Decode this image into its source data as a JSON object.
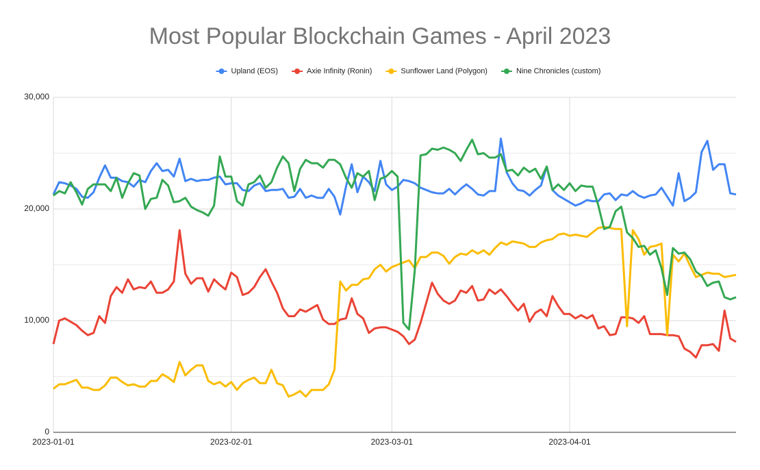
{
  "chart_data": {
    "type": "line",
    "title": "Most Popular Blockchain Games - April 2023",
    "x": [
      "2023-01-01",
      "2023-01-02",
      "2023-01-03",
      "2023-01-04",
      "2023-01-05",
      "2023-01-06",
      "2023-01-07",
      "2023-01-08",
      "2023-01-09",
      "2023-01-10",
      "2023-01-11",
      "2023-01-12",
      "2023-01-13",
      "2023-01-14",
      "2023-01-15",
      "2023-01-16",
      "2023-01-17",
      "2023-01-18",
      "2023-01-19",
      "2023-01-20",
      "2023-01-21",
      "2023-01-22",
      "2023-01-23",
      "2023-01-24",
      "2023-01-25",
      "2023-01-26",
      "2023-01-27",
      "2023-01-28",
      "2023-01-29",
      "2023-01-30",
      "2023-01-31",
      "2023-02-01",
      "2023-02-02",
      "2023-02-03",
      "2023-02-04",
      "2023-02-05",
      "2023-02-06",
      "2023-02-07",
      "2023-02-08",
      "2023-02-09",
      "2023-02-10",
      "2023-02-11",
      "2023-02-12",
      "2023-02-13",
      "2023-02-14",
      "2023-02-15",
      "2023-02-16",
      "2023-02-17",
      "2023-02-18",
      "2023-02-19",
      "2023-02-20",
      "2023-02-21",
      "2023-02-22",
      "2023-02-23",
      "2023-02-24",
      "2023-02-25",
      "2023-02-26",
      "2023-02-27",
      "2023-02-28",
      "2023-03-01",
      "2023-03-02",
      "2023-03-03",
      "2023-03-04",
      "2023-03-05",
      "2023-03-06",
      "2023-03-07",
      "2023-03-08",
      "2023-03-09",
      "2023-03-10",
      "2023-03-11",
      "2023-03-12",
      "2023-03-13",
      "2023-03-14",
      "2023-03-15",
      "2023-03-16",
      "2023-03-17",
      "2023-03-18",
      "2023-03-19",
      "2023-03-20",
      "2023-03-21",
      "2023-03-22",
      "2023-03-23",
      "2023-03-24",
      "2023-03-25",
      "2023-03-26",
      "2023-03-27",
      "2023-03-28",
      "2023-03-29",
      "2023-03-30",
      "2023-03-31",
      "2023-04-01",
      "2023-04-02",
      "2023-04-03",
      "2023-04-04",
      "2023-04-05",
      "2023-04-06",
      "2023-04-07",
      "2023-04-08",
      "2023-04-09",
      "2023-04-10",
      "2023-04-11",
      "2023-04-12",
      "2023-04-13",
      "2023-04-14",
      "2023-04-15",
      "2023-04-16",
      "2023-04-17",
      "2023-04-18",
      "2023-04-19",
      "2023-04-20",
      "2023-04-21",
      "2023-04-22",
      "2023-04-23",
      "2023-04-24",
      "2023-04-25",
      "2023-04-26",
      "2023-04-27",
      "2023-04-28",
      "2023-04-29",
      "2023-04-30"
    ],
    "series": [
      {
        "name": "Upland (EOS)",
        "color": "#4285f4",
        "values": [
          21300,
          22400,
          22300,
          22100,
          21800,
          21100,
          21000,
          21500,
          22800,
          23900,
          22800,
          22800,
          22500,
          22400,
          22000,
          22600,
          22400,
          23400,
          24100,
          23400,
          23500,
          22900,
          24500,
          22500,
          22700,
          22500,
          22600,
          22600,
          22800,
          22900,
          22200,
          22300,
          22300,
          21700,
          21600,
          22100,
          22300,
          21600,
          21700,
          21700,
          21800,
          21000,
          21100,
          21800,
          21000,
          21200,
          21000,
          21000,
          21800,
          21100,
          19500,
          22000,
          24000,
          21500,
          22900,
          22400,
          21600,
          24300,
          22200,
          21700,
          22000,
          22600,
          22500,
          22300,
          21900,
          21700,
          21500,
          21400,
          21400,
          21800,
          21300,
          21800,
          22200,
          21800,
          21300,
          21200,
          21600,
          21600,
          26300,
          23300,
          22300,
          21700,
          21600,
          21200,
          21700,
          22100,
          23800,
          21700,
          21200,
          20900,
          20600,
          20300,
          20500,
          20800,
          20700,
          20700,
          21300,
          21400,
          20800,
          21300,
          21200,
          21600,
          21200,
          21000,
          21200,
          21300,
          21900,
          21100,
          20300,
          23200,
          20700,
          21000,
          21500,
          25100,
          26100,
          23500,
          24000,
          24000,
          21400,
          21300
        ]
      },
      {
        "name": "Axie Infinity (Ronin)",
        "color": "#ea4335",
        "values": [
          7900,
          10000,
          10200,
          9900,
          9600,
          9100,
          8700,
          8900,
          10400,
          9800,
          12200,
          13000,
          12500,
          13700,
          12800,
          13000,
          12900,
          13500,
          12500,
          12500,
          12800,
          13500,
          18100,
          14200,
          13300,
          13800,
          13800,
          12600,
          13700,
          13200,
          12800,
          14300,
          13900,
          12300,
          12500,
          13000,
          13900,
          14600,
          13500,
          12500,
          11100,
          10400,
          10400,
          11000,
          10800,
          11100,
          11400,
          10100,
          9700,
          9700,
          10100,
          10200,
          12000,
          10600,
          10200,
          8900,
          9300,
          9400,
          9400,
          9200,
          9000,
          8600,
          7900,
          8300,
          9800,
          11600,
          13400,
          12400,
          11800,
          11500,
          11800,
          12700,
          12500,
          13100,
          11800,
          11900,
          12800,
          12400,
          12800,
          12200,
          11500,
          10900,
          11500,
          9900,
          10700,
          11000,
          10400,
          12200,
          11300,
          10600,
          10600,
          10200,
          10500,
          10200,
          10500,
          9300,
          9500,
          8700,
          8800,
          10300,
          10300,
          10200,
          9800,
          10400,
          8800,
          8800,
          8800,
          8700,
          8700,
          8600,
          7500,
          7200,
          6700,
          7800,
          7800,
          7900,
          7300,
          10900,
          8400,
          8100
        ]
      },
      {
        "name": "Sunflower Land (Polygon)",
        "color": "#fbbc04",
        "values": [
          3900,
          4300,
          4300,
          4500,
          4700,
          4000,
          4000,
          3800,
          3800,
          4200,
          4900,
          4900,
          4500,
          4200,
          4300,
          4100,
          4100,
          4600,
          4600,
          5200,
          4900,
          4500,
          6300,
          5100,
          5600,
          6000,
          6000,
          4600,
          4300,
          4500,
          4100,
          4500,
          3800,
          4400,
          4700,
          4900,
          4400,
          4400,
          5600,
          4400,
          4200,
          3200,
          3400,
          3700,
          3200,
          3800,
          3800,
          3800,
          4300,
          5600,
          13500,
          12700,
          13200,
          13200,
          13700,
          13800,
          14600,
          15000,
          14400,
          14800,
          15000,
          15200,
          15400,
          14700,
          15700,
          15700,
          16100,
          16100,
          15800,
          15100,
          15700,
          16000,
          15900,
          16300,
          16000,
          16300,
          15900,
          16500,
          17000,
          16800,
          17100,
          17000,
          16900,
          16600,
          16600,
          17000,
          17200,
          17300,
          17700,
          17800,
          17600,
          17700,
          17600,
          17500,
          17900,
          18300,
          18400,
          18300,
          18200,
          18200,
          9500,
          18100,
          17300,
          15900,
          16600,
          16700,
          16900,
          8700,
          15900,
          15300,
          16000,
          14900,
          13900,
          14100,
          14300,
          14200,
          14200,
          13900,
          14000,
          14100
        ]
      },
      {
        "name": "Nine Chronicles (custom)",
        "color": "#34a853",
        "values": [
          21200,
          21600,
          21400,
          22400,
          21500,
          20400,
          21800,
          22200,
          22200,
          22200,
          21600,
          22800,
          21000,
          22300,
          23200,
          23000,
          20000,
          20900,
          21000,
          22600,
          22100,
          20600,
          20700,
          21000,
          20200,
          19900,
          19700,
          19400,
          20300,
          24700,
          22900,
          22900,
          20700,
          20300,
          22200,
          22400,
          23000,
          21900,
          22400,
          23700,
          24700,
          24100,
          21600,
          23600,
          24400,
          24100,
          24100,
          23700,
          24400,
          24400,
          24000,
          22800,
          21900,
          23200,
          22900,
          23400,
          20800,
          22700,
          22900,
          23400,
          22900,
          9800,
          9200,
          14500,
          24800,
          24900,
          25400,
          25300,
          25500,
          25300,
          25000,
          24300,
          25300,
          26200,
          24900,
          25000,
          24600,
          24600,
          24900,
          23400,
          23500,
          23000,
          23700,
          23300,
          23600,
          22700,
          23800,
          21700,
          22200,
          21700,
          22300,
          21600,
          22100,
          22000,
          22000,
          20300,
          18200,
          18400,
          19800,
          20200,
          17900,
          17400,
          16600,
          16700,
          15900,
          16300,
          14700,
          12300,
          16500,
          16000,
          16100,
          15500,
          14400,
          14000,
          13100,
          13400,
          13500,
          12100,
          11900,
          12100
        ]
      }
    ],
    "xlim": [
      "2023-01-01",
      "2023-04-30"
    ],
    "xticks": [
      "2023-01-01",
      "2023-02-01",
      "2023-03-01",
      "2023-04-01"
    ],
    "ylim": [
      0,
      30000
    ],
    "yticks": [
      0,
      {
        "value": 10000,
        "label": "10,000"
      },
      {
        "value": 20000,
        "label": "20,000"
      },
      {
        "value": 30000,
        "label": "30,000"
      }
    ],
    "minor_yticks": [
      5000,
      15000,
      25000
    ],
    "grid": true,
    "legend": "top"
  }
}
